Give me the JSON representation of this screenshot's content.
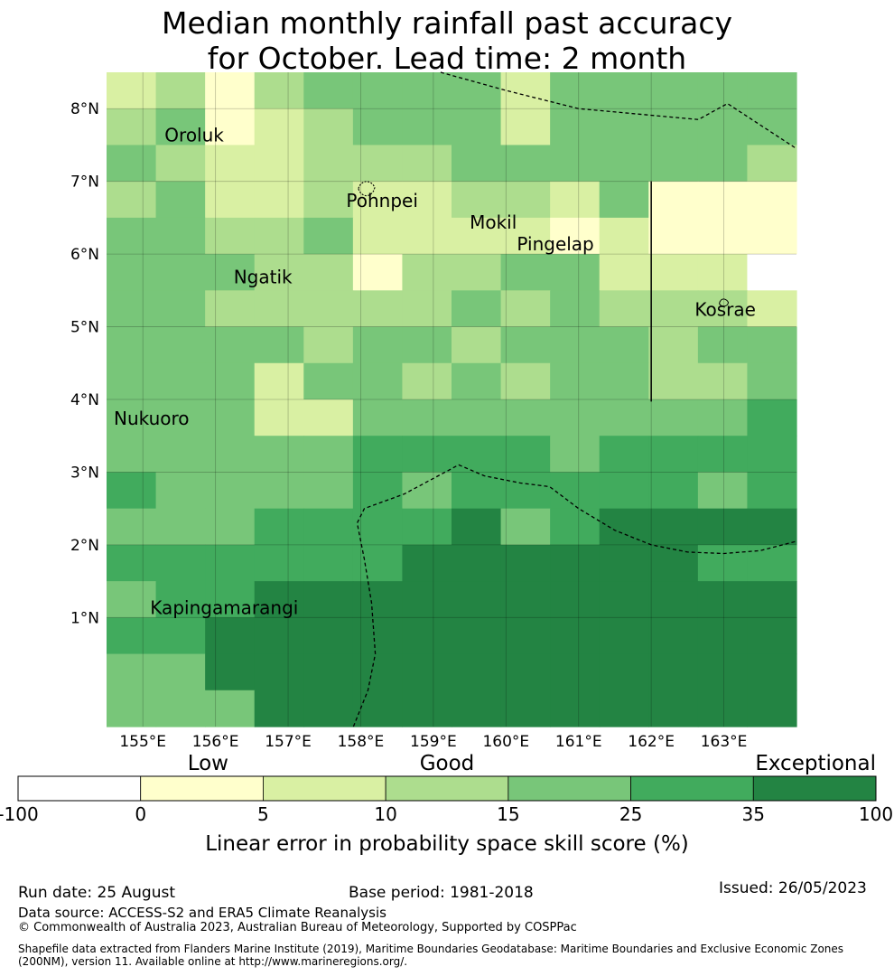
{
  "title": {
    "line1": "Median monthly rainfall past accuracy",
    "line2": "for October. Lead time: 2 month"
  },
  "map": {
    "lat_range": [
      -0.5,
      8.5
    ],
    "lon_range": [
      154.5,
      164.0
    ],
    "lat_ticks": [
      {
        "value": 1,
        "label": "1°N"
      },
      {
        "value": 2,
        "label": "2°N"
      },
      {
        "value": 3,
        "label": "3°N"
      },
      {
        "value": 4,
        "label": "4°N"
      },
      {
        "value": 5,
        "label": "5°N"
      },
      {
        "value": 6,
        "label": "6°N"
      },
      {
        "value": 7,
        "label": "7°N"
      },
      {
        "value": 8,
        "label": "8°N"
      }
    ],
    "lon_ticks": [
      {
        "value": 155,
        "label": "155°E"
      },
      {
        "value": 156,
        "label": "156°E"
      },
      {
        "value": 157,
        "label": "157°E"
      },
      {
        "value": 158,
        "label": "158°E"
      },
      {
        "value": 159,
        "label": "159°E"
      },
      {
        "value": 160,
        "label": "160°E"
      },
      {
        "value": 161,
        "label": "161°E"
      },
      {
        "value": 162,
        "label": "162°E"
      },
      {
        "value": 163,
        "label": "163°E"
      }
    ],
    "place_labels": [
      {
        "name": "Oroluk",
        "lon": 155.3,
        "lat": 7.55
      },
      {
        "name": "Pohnpei",
        "lon": 157.8,
        "lat": 6.65
      },
      {
        "name": "Mokil",
        "lon": 159.5,
        "lat": 6.35
      },
      {
        "name": "Pingelap",
        "lon": 160.15,
        "lat": 6.05
      },
      {
        "name": "Ngatik",
        "lon": 156.25,
        "lat": 5.6
      },
      {
        "name": "Kosrae",
        "lon": 162.6,
        "lat": 5.15
      },
      {
        "name": "Nukuoro",
        "lon": 154.6,
        "lat": 3.65
      },
      {
        "name": "Kapingamarangi",
        "lon": 155.1,
        "lat": 1.05
      }
    ],
    "grid": {
      "rows": 16,
      "cols": 14,
      "values": [
        [
          2,
          3,
          1,
          3,
          4,
          4,
          4,
          4,
          2,
          4,
          4,
          4,
          4,
          4
        ],
        [
          3,
          4,
          1,
          2,
          3,
          4,
          4,
          4,
          2,
          4,
          4,
          4,
          4,
          4
        ],
        [
          4,
          3,
          2,
          2,
          3,
          3,
          3,
          4,
          4,
          4,
          4,
          4,
          4,
          3
        ],
        [
          3,
          4,
          2,
          2,
          3,
          2,
          2,
          3,
          3,
          2,
          4,
          1,
          1,
          1
        ],
        [
          4,
          4,
          3,
          3,
          4,
          2,
          2,
          2,
          2,
          1,
          2,
          1,
          1,
          1
        ],
        [
          4,
          4,
          4,
          3,
          3,
          1,
          3,
          3,
          4,
          4,
          2,
          2,
          2,
          0
        ],
        [
          4,
          4,
          3,
          3,
          3,
          3,
          3,
          4,
          3,
          4,
          3,
          3,
          3,
          2
        ],
        [
          4,
          4,
          4,
          4,
          3,
          4,
          4,
          3,
          4,
          4,
          4,
          3,
          4,
          4
        ],
        [
          4,
          4,
          4,
          2,
          4,
          4,
          3,
          4,
          3,
          4,
          4,
          3,
          3,
          4
        ],
        [
          4,
          4,
          4,
          2,
          2,
          4,
          4,
          4,
          4,
          4,
          4,
          4,
          4,
          5
        ],
        [
          4,
          4,
          4,
          4,
          4,
          5,
          5,
          5,
          5,
          4,
          5,
          5,
          5,
          5
        ],
        [
          5,
          4,
          4,
          4,
          4,
          5,
          4,
          5,
          5,
          5,
          5,
          5,
          4,
          5
        ],
        [
          4,
          4,
          4,
          5,
          5,
          5,
          5,
          6,
          4,
          5,
          6,
          6,
          6,
          6
        ],
        [
          5,
          5,
          5,
          5,
          5,
          5,
          6,
          6,
          6,
          6,
          6,
          6,
          5,
          5
        ],
        [
          4,
          5,
          5,
          6,
          6,
          6,
          6,
          6,
          6,
          6,
          6,
          6,
          6,
          6
        ],
        [
          5,
          5,
          6,
          6,
          6,
          6,
          6,
          6,
          6,
          6,
          6,
          6,
          6,
          6
        ]
      ],
      "bottom_rows": {
        "values": [
          [
            4,
            4,
            6,
            6,
            6,
            6,
            6,
            6,
            6,
            6,
            6,
            6,
            6,
            6
          ],
          [
            4,
            4,
            4,
            6,
            6,
            6,
            6,
            6,
            6,
            6,
            6,
            6,
            6,
            6
          ]
        ]
      }
    },
    "palette": [
      "#ffffff",
      "#ffffcc",
      "#d9f0a3",
      "#addd8e",
      "#78c679",
      "#41ab5d",
      "#238443"
    ]
  },
  "colorbar": {
    "category_labels": {
      "low": "Low",
      "good": "Good",
      "exceptional": "Exceptional"
    },
    "ticks": [
      "-100",
      "0",
      "5",
      "10",
      "15",
      "25",
      "35",
      "100"
    ],
    "colors": [
      "#ffffff",
      "#ffffcc",
      "#d9f0a3",
      "#addd8e",
      "#78c679",
      "#41ab5d",
      "#238443"
    ],
    "label": "Linear error in probability space skill score (%)"
  },
  "footer": {
    "run_date": "Run date: 25 August",
    "base_period": "Base period: 1981-2018",
    "issued": "Issued: 26/05/2023",
    "data_source": "Data source: ACCESS-S2 and ERA5 Climate Reanalysis",
    "copyright": "© Commonwealth of Australia 2023, Australian Bureau of Meteorology, Supported by COSPPac",
    "shapefile_note": "Shapefile data extracted from Flanders Marine Institute (2019), Maritime Boundaries Geodatabase: Maritime Boundaries and Exclusive Economic Zones (200NM), version 11. Available online at http://www.marineregions.org/."
  }
}
